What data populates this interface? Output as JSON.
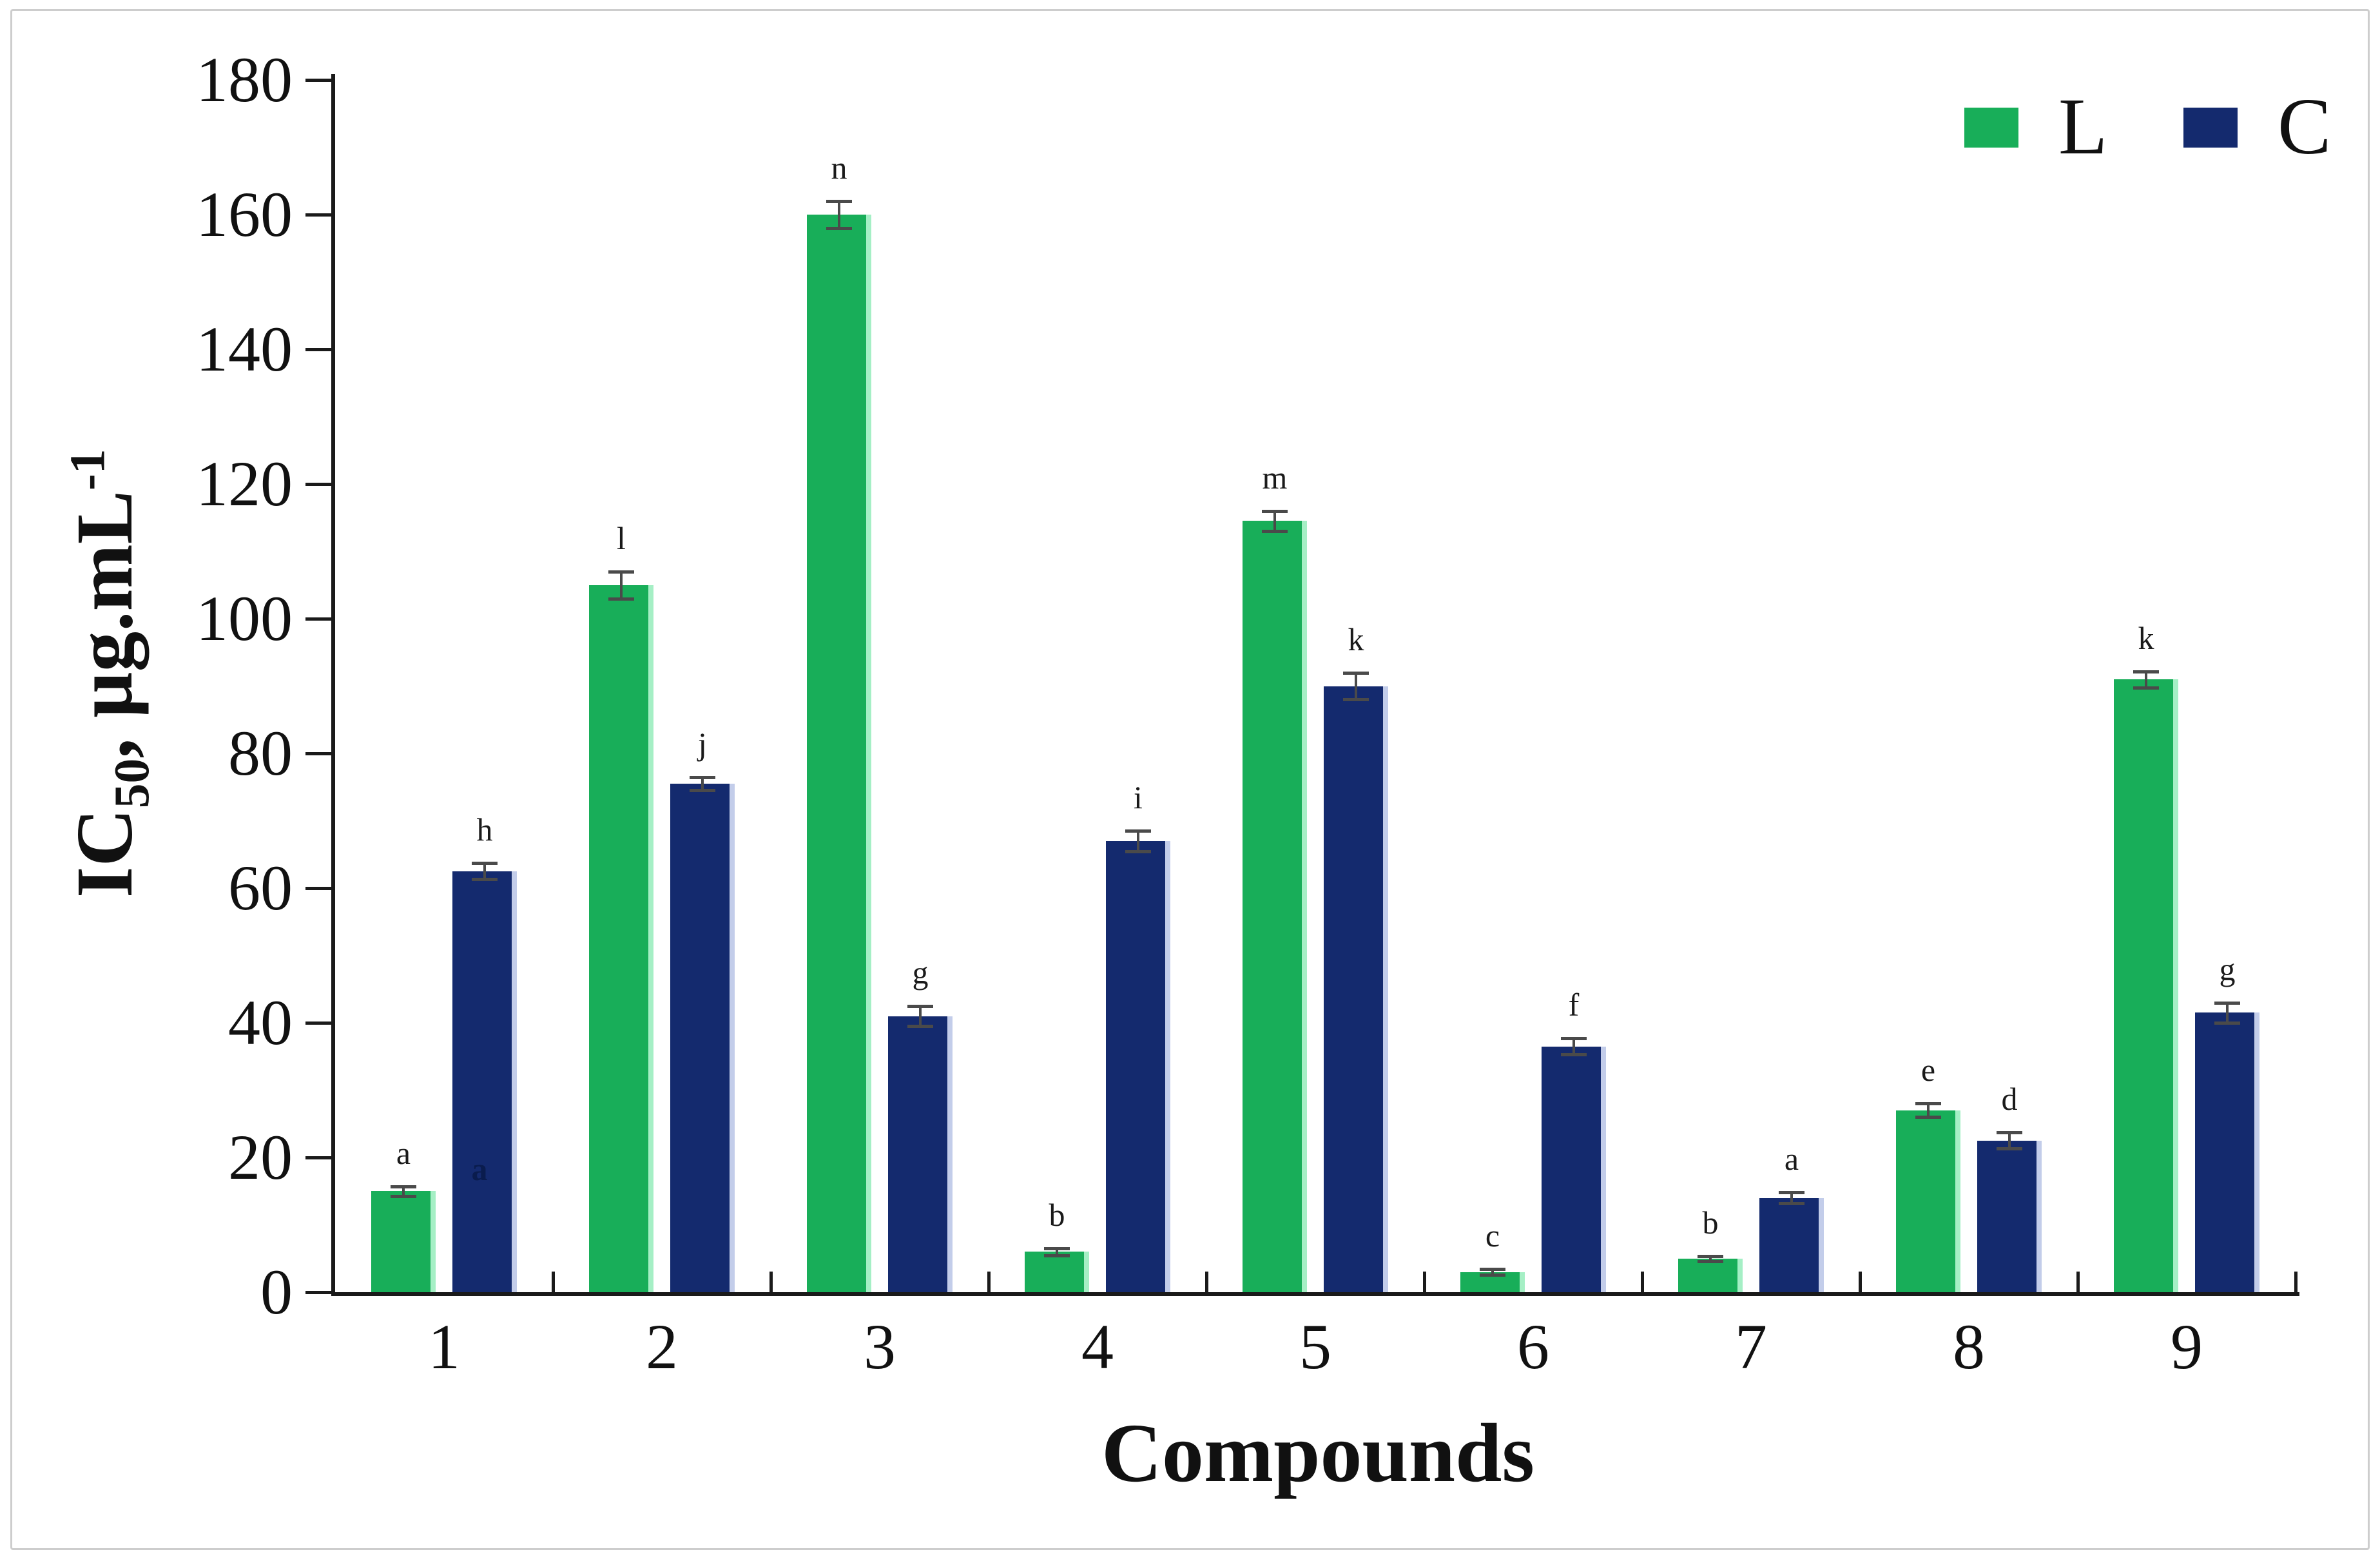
{
  "figure": {
    "background": "#ffffff",
    "border_color": "#cdcdcd"
  },
  "chart_data": {
    "type": "bar",
    "title": "",
    "categories": [
      "1",
      "2",
      "3",
      "4",
      "5",
      "6",
      "7",
      "8",
      "9"
    ],
    "series": [
      {
        "name": "L",
        "color": "#18AE59",
        "edge_color": "#a5efc5",
        "values": [
          15,
          105,
          160,
          6,
          114.5,
          3,
          5,
          27,
          91
        ],
        "letters": [
          "a",
          "l",
          "n",
          "b",
          "m",
          "c",
          "b",
          "e",
          "k"
        ],
        "errors": [
          0.7,
          2,
          2,
          0.5,
          1.5,
          0.4,
          0.4,
          1,
          1.2
        ]
      },
      {
        "name": "C",
        "color": "#142A6E",
        "edge_color": "#c3cdea",
        "values": [
          62.5,
          75.5,
          41,
          67,
          90,
          36.5,
          14,
          22.5,
          41.5
        ],
        "letters": [
          "h",
          "j",
          "g",
          "i",
          "k",
          "f",
          "a",
          "d",
          "g"
        ],
        "errors": [
          1.2,
          1,
          1.5,
          1.5,
          2,
          1.2,
          0.8,
          1.2,
          1.5
        ]
      }
    ],
    "extra_label": {
      "text": "a",
      "group_index": 0,
      "series": "C",
      "color": "#0a1c4e"
    },
    "ylabel_parts": {
      "base1": "IC",
      "sub": "50",
      "base2": ", µg.mL",
      "sup": "-1"
    },
    "xlabel": "Compounds",
    "y_ticks": [
      0,
      20,
      40,
      60,
      80,
      100,
      120,
      140,
      160,
      180
    ],
    "ylim": [
      0,
      180
    ],
    "grid": false,
    "legend_position": "top-right",
    "error_bar_color": "#4a4a4a",
    "axis_color": "#1a1a1a",
    "letter_color": "#1a1a1a"
  }
}
